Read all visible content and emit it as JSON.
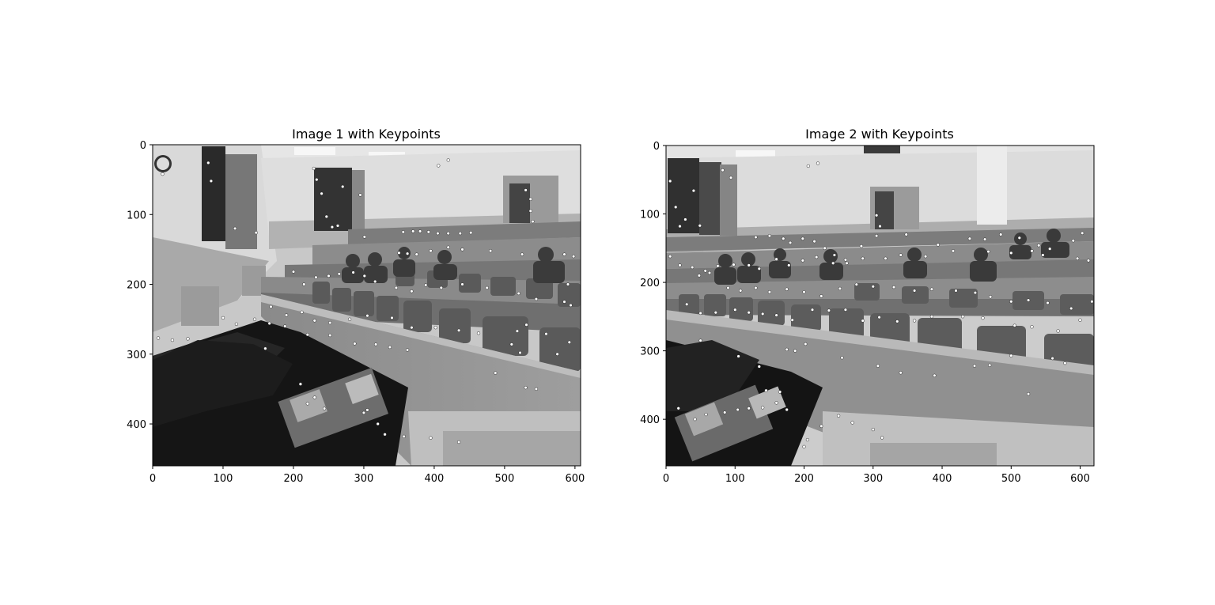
{
  "chart_data": [
    {
      "type": "scatter",
      "title": "Image 1 with Keypoints",
      "background": "grayscale classroom photo",
      "xlim": [
        0,
        608
      ],
      "ylim": [
        460,
        0
      ],
      "xticks": [
        0,
        100,
        200,
        300,
        400,
        500,
        600
      ],
      "yticks": [
        0,
        100,
        200,
        300,
        400
      ],
      "grid": false,
      "marker_color": "#ffffff",
      "points": [
        [
          14,
          42
        ],
        [
          79,
          26
        ],
        [
          83,
          52
        ],
        [
          117,
          120
        ],
        [
          147,
          126
        ],
        [
          229,
          34
        ],
        [
          233,
          50
        ],
        [
          240,
          70
        ],
        [
          247,
          103
        ],
        [
          255,
          118
        ],
        [
          263,
          116
        ],
        [
          270,
          60
        ],
        [
          295,
          72
        ],
        [
          301,
          132
        ],
        [
          406,
          30
        ],
        [
          420,
          22
        ],
        [
          530,
          65
        ],
        [
          537,
          78
        ],
        [
          537,
          95
        ],
        [
          540,
          110
        ],
        [
          356,
          125
        ],
        [
          370,
          124
        ],
        [
          380,
          124
        ],
        [
          392,
          125
        ],
        [
          405,
          127
        ],
        [
          420,
          127
        ],
        [
          437,
          127
        ],
        [
          452,
          126
        ],
        [
          350,
          155
        ],
        [
          362,
          156
        ],
        [
          375,
          157
        ],
        [
          395,
          152
        ],
        [
          420,
          147
        ],
        [
          440,
          150
        ],
        [
          480,
          152
        ],
        [
          525,
          157
        ],
        [
          585,
          157
        ],
        [
          598,
          160
        ],
        [
          590,
          200
        ],
        [
          200,
          182
        ],
        [
          215,
          200
        ],
        [
          232,
          190
        ],
        [
          250,
          188
        ],
        [
          265,
          185
        ],
        [
          285,
          183
        ],
        [
          301,
          188
        ],
        [
          316,
          196
        ],
        [
          346,
          205
        ],
        [
          368,
          210
        ],
        [
          388,
          201
        ],
        [
          410,
          205
        ],
        [
          440,
          200
        ],
        [
          475,
          205
        ],
        [
          520,
          213
        ],
        [
          545,
          221
        ],
        [
          585,
          225
        ],
        [
          594,
          230
        ],
        [
          168,
          232
        ],
        [
          190,
          244
        ],
        [
          212,
          240
        ],
        [
          230,
          252
        ],
        [
          252,
          255
        ],
        [
          280,
          250
        ],
        [
          305,
          245
        ],
        [
          340,
          248
        ],
        [
          368,
          262
        ],
        [
          402,
          262
        ],
        [
          435,
          266
        ],
        [
          463,
          270
        ],
        [
          518,
          267
        ],
        [
          531,
          258
        ],
        [
          559,
          271
        ],
        [
          100,
          248
        ],
        [
          119,
          257
        ],
        [
          145,
          250
        ],
        [
          166,
          256
        ],
        [
          188,
          260
        ],
        [
          220,
          272
        ],
        [
          252,
          273
        ],
        [
          287,
          285
        ],
        [
          317,
          286
        ],
        [
          337,
          290
        ],
        [
          362,
          294
        ],
        [
          8,
          277
        ],
        [
          28,
          280
        ],
        [
          50,
          278
        ],
        [
          210,
          343
        ],
        [
          220,
          371
        ],
        [
          230,
          362
        ],
        [
          244,
          378
        ],
        [
          300,
          384
        ],
        [
          305,
          380
        ],
        [
          320,
          400
        ],
        [
          330,
          415
        ],
        [
          357,
          418
        ],
        [
          395,
          420
        ],
        [
          435,
          426
        ],
        [
          487,
          327
        ],
        [
          530,
          348
        ],
        [
          545,
          350
        ],
        [
          160,
          292
        ],
        [
          510,
          286
        ],
        [
          522,
          298
        ],
        [
          575,
          300
        ],
        [
          592,
          283
        ]
      ]
    },
    {
      "type": "scatter",
      "title": "Image 2 with Keypoints",
      "background": "grayscale classroom photo",
      "xlim": [
        0,
        620
      ],
      "ylim": [
        468,
        0
      ],
      "xticks": [
        0,
        100,
        200,
        300,
        400,
        500,
        600
      ],
      "yticks": [
        0,
        100,
        200,
        300,
        400
      ],
      "grid": false,
      "marker_color": "#ffffff",
      "points": [
        [
          6,
          52
        ],
        [
          14,
          90
        ],
        [
          20,
          118
        ],
        [
          28,
          108
        ],
        [
          40,
          66
        ],
        [
          49,
          117
        ],
        [
          82,
          36
        ],
        [
          94,
          47
        ],
        [
          206,
          30
        ],
        [
          220,
          26
        ],
        [
          305,
          102
        ],
        [
          310,
          118
        ],
        [
          6,
          162
        ],
        [
          20,
          175
        ],
        [
          38,
          178
        ],
        [
          57,
          183
        ],
        [
          75,
          176
        ],
        [
          98,
          174
        ],
        [
          120,
          175
        ],
        [
          135,
          180
        ],
        [
          160,
          166
        ],
        [
          178,
          175
        ],
        [
          198,
          168
        ],
        [
          218,
          163
        ],
        [
          242,
          172
        ],
        [
          262,
          172
        ],
        [
          285,
          165
        ],
        [
          318,
          165
        ],
        [
          340,
          160
        ],
        [
          376,
          162
        ],
        [
          416,
          154
        ],
        [
          467,
          155
        ],
        [
          500,
          157
        ],
        [
          530,
          154
        ],
        [
          546,
          160
        ],
        [
          596,
          165
        ],
        [
          612,
          168
        ],
        [
          130,
          134
        ],
        [
          150,
          132
        ],
        [
          170,
          136
        ],
        [
          180,
          142
        ],
        [
          198,
          136
        ],
        [
          215,
          140
        ],
        [
          230,
          150
        ],
        [
          244,
          160
        ],
        [
          260,
          167
        ],
        [
          283,
          147
        ],
        [
          305,
          132
        ],
        [
          348,
          130
        ],
        [
          394,
          145
        ],
        [
          440,
          136
        ],
        [
          462,
          137
        ],
        [
          485,
          130
        ],
        [
          512,
          135
        ],
        [
          540,
          146
        ],
        [
          556,
          151
        ],
        [
          590,
          139
        ],
        [
          603,
          128
        ],
        [
          48,
          190
        ],
        [
          63,
          186
        ],
        [
          90,
          208
        ],
        [
          108,
          212
        ],
        [
          130,
          208
        ],
        [
          150,
          214
        ],
        [
          175,
          210
        ],
        [
          200,
          214
        ],
        [
          225,
          220
        ],
        [
          252,
          209
        ],
        [
          276,
          203
        ],
        [
          300,
          206
        ],
        [
          330,
          207
        ],
        [
          360,
          212
        ],
        [
          385,
          210
        ],
        [
          420,
          212
        ],
        [
          448,
          215
        ],
        [
          470,
          221
        ],
        [
          500,
          228
        ],
        [
          525,
          226
        ],
        [
          553,
          230
        ],
        [
          587,
          238
        ],
        [
          617,
          228
        ],
        [
          30,
          232
        ],
        [
          50,
          245
        ],
        [
          72,
          244
        ],
        [
          100,
          240
        ],
        [
          120,
          244
        ],
        [
          140,
          246
        ],
        [
          160,
          248
        ],
        [
          183,
          255
        ],
        [
          212,
          240
        ],
        [
          236,
          241
        ],
        [
          260,
          240
        ],
        [
          285,
          256
        ],
        [
          309,
          251
        ],
        [
          335,
          257
        ],
        [
          360,
          256
        ],
        [
          385,
          250
        ],
        [
          430,
          250
        ],
        [
          459,
          252
        ],
        [
          505,
          263
        ],
        [
          530,
          265
        ],
        [
          568,
          271
        ],
        [
          600,
          255
        ],
        [
          50,
          285
        ],
        [
          105,
          308
        ],
        [
          135,
          323
        ],
        [
          175,
          298
        ],
        [
          187,
          300
        ],
        [
          202,
          290
        ],
        [
          255,
          310
        ],
        [
          307,
          322
        ],
        [
          340,
          332
        ],
        [
          389,
          336
        ],
        [
          447,
          322
        ],
        [
          469,
          321
        ],
        [
          500,
          307
        ],
        [
          525,
          363
        ],
        [
          560,
          311
        ],
        [
          578,
          318
        ],
        [
          18,
          384
        ],
        [
          42,
          400
        ],
        [
          58,
          393
        ],
        [
          85,
          390
        ],
        [
          104,
          386
        ],
        [
          120,
          384
        ],
        [
          140,
          383
        ],
        [
          160,
          376
        ],
        [
          175,
          386
        ],
        [
          200,
          440
        ],
        [
          205,
          430
        ],
        [
          225,
          410
        ],
        [
          250,
          395
        ],
        [
          270,
          405
        ],
        [
          300,
          415
        ],
        [
          313,
          427
        ],
        [
          145,
          358
        ],
        [
          165,
          360
        ]
      ]
    }
  ]
}
